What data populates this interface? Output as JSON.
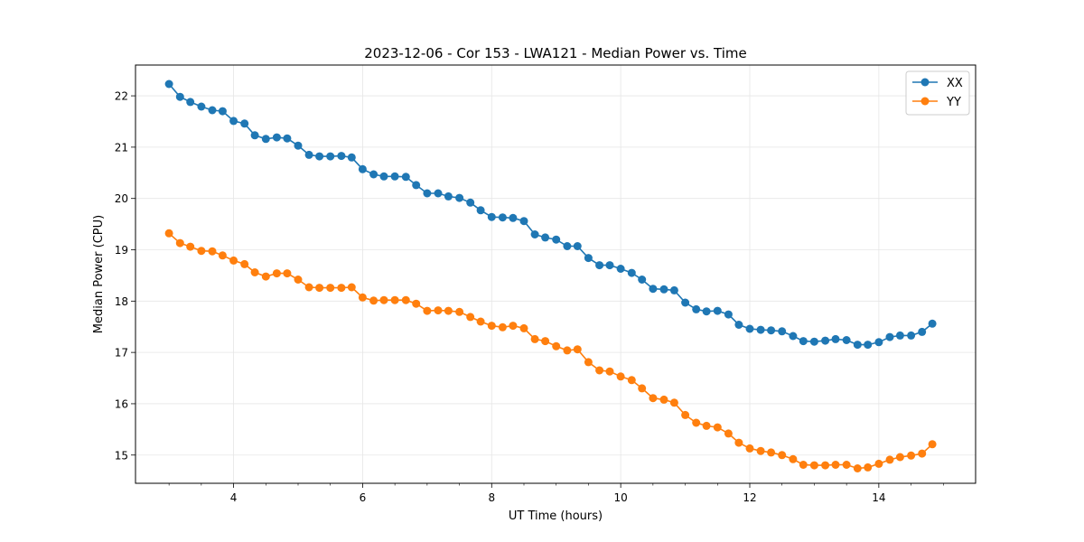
{
  "chart_data": {
    "type": "line",
    "title": "2023-12-06 - Cor 153 - LWA121 - Median Power vs. Time",
    "xlabel": "UT Time (hours)",
    "ylabel": "Median Power (CPU)",
    "xlim": [
      2.48,
      15.5
    ],
    "ylim": [
      14.45,
      22.6
    ],
    "xticks": [
      4,
      6,
      8,
      10,
      12,
      14
    ],
    "yticks": [
      15,
      16,
      17,
      18,
      19,
      20,
      21,
      22
    ],
    "grid": true,
    "legend_position": "top-right",
    "x": [
      3.0,
      3.17,
      3.33,
      3.5,
      3.67,
      3.83,
      4.0,
      4.17,
      4.33,
      4.5,
      4.67,
      4.83,
      5.0,
      5.17,
      5.33,
      5.5,
      5.67,
      5.83,
      6.0,
      6.17,
      6.33,
      6.5,
      6.67,
      6.83,
      7.0,
      7.17,
      7.33,
      7.5,
      7.67,
      7.83,
      8.0,
      8.17,
      8.33,
      8.5,
      8.67,
      8.83,
      9.0,
      9.17,
      9.33,
      9.5,
      9.67,
      9.83,
      10.0,
      10.17,
      10.33,
      10.5,
      10.67,
      10.83,
      11.0,
      11.17,
      11.33,
      11.5,
      11.67,
      11.83,
      12.0,
      12.17,
      12.33,
      12.5,
      12.67,
      12.83,
      13.0,
      13.17,
      13.33,
      13.5,
      13.67,
      13.83,
      14.0,
      14.17,
      14.33,
      14.5,
      14.67,
      14.83
    ],
    "series": [
      {
        "name": "XX",
        "color": "#1f77b4",
        "values": [
          22.23,
          21.98,
          21.88,
          21.79,
          21.72,
          21.7,
          21.51,
          21.46,
          21.23,
          21.16,
          21.19,
          21.17,
          21.03,
          20.85,
          20.82,
          20.82,
          20.83,
          20.8,
          20.57,
          20.47,
          20.43,
          20.43,
          20.42,
          20.26,
          20.1,
          20.1,
          20.04,
          20.01,
          19.92,
          19.77,
          19.64,
          19.63,
          19.62,
          19.56,
          19.3,
          19.24,
          19.2,
          19.07,
          19.07,
          18.84,
          18.7,
          18.7,
          18.63,
          18.55,
          18.42,
          18.24,
          18.23,
          18.21,
          17.97,
          17.84,
          17.8,
          17.81,
          17.74,
          17.54,
          17.46,
          17.44,
          17.43,
          17.41,
          17.32,
          17.22,
          17.21,
          17.23,
          17.26,
          17.24,
          17.15,
          17.15,
          17.2,
          17.3,
          17.33,
          17.33,
          17.4,
          17.56
        ]
      },
      {
        "name": "YY",
        "color": "#ff7f0e",
        "values": [
          19.32,
          19.13,
          19.06,
          18.98,
          18.97,
          18.89,
          18.79,
          18.72,
          18.56,
          18.48,
          18.54,
          18.54,
          18.42,
          18.27,
          18.26,
          18.26,
          18.26,
          18.27,
          18.07,
          18.01,
          18.02,
          18.02,
          18.02,
          17.95,
          17.81,
          17.82,
          17.81,
          17.79,
          17.69,
          17.6,
          17.52,
          17.49,
          17.52,
          17.47,
          17.26,
          17.22,
          17.12,
          17.04,
          17.06,
          16.81,
          16.65,
          16.63,
          16.53,
          16.46,
          16.3,
          16.11,
          16.08,
          16.02,
          15.78,
          15.63,
          15.57,
          15.54,
          15.42,
          15.24,
          15.13,
          15.08,
          15.05,
          15.0,
          14.92,
          14.81,
          14.8,
          14.8,
          14.81,
          14.81,
          14.74,
          14.76,
          14.83,
          14.91,
          14.96,
          14.99,
          15.03,
          15.21
        ]
      }
    ]
  }
}
